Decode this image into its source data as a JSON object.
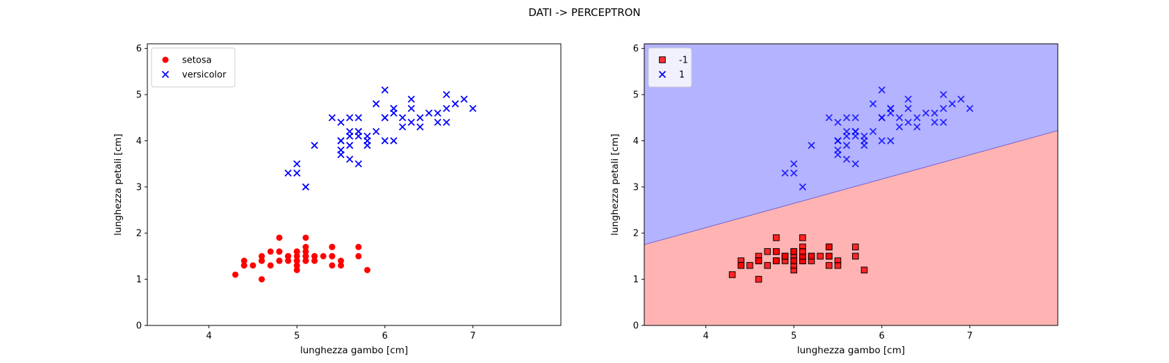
{
  "figure": {
    "suptitle": "DATI -> PERCEPTRON"
  },
  "chart_data": [
    {
      "type": "scatter",
      "title": "",
      "xlabel": "lunghezza gambo [cm]",
      "ylabel": "lunghezza petali [cm]",
      "xlim": [
        3.3,
        8.0
      ],
      "ylim": [
        0,
        6.1
      ],
      "xticks": [
        4,
        5,
        6,
        7
      ],
      "yticks": [
        0,
        1,
        2,
        3,
        4,
        5,
        6
      ],
      "grid": false,
      "legend": "top-left",
      "series": [
        {
          "name": "setosa",
          "marker": "circle",
          "color": "#ff0000",
          "points": [
            [
              5.1,
              1.4
            ],
            [
              4.9,
              1.4
            ],
            [
              4.7,
              1.3
            ],
            [
              4.6,
              1.5
            ],
            [
              5.0,
              1.4
            ],
            [
              5.4,
              1.7
            ],
            [
              4.6,
              1.4
            ],
            [
              5.0,
              1.5
            ],
            [
              4.4,
              1.4
            ],
            [
              4.9,
              1.5
            ],
            [
              5.4,
              1.5
            ],
            [
              4.8,
              1.6
            ],
            [
              4.8,
              1.4
            ],
            [
              4.3,
              1.1
            ],
            [
              5.8,
              1.2
            ],
            [
              5.7,
              1.5
            ],
            [
              5.4,
              1.3
            ],
            [
              5.1,
              1.4
            ],
            [
              5.7,
              1.7
            ],
            [
              5.1,
              1.5
            ],
            [
              5.4,
              1.7
            ],
            [
              5.1,
              1.5
            ],
            [
              4.6,
              1.0
            ],
            [
              5.1,
              1.7
            ],
            [
              4.8,
              1.9
            ],
            [
              5.0,
              1.6
            ],
            [
              5.0,
              1.6
            ],
            [
              5.2,
              1.5
            ],
            [
              5.2,
              1.4
            ],
            [
              4.7,
              1.6
            ],
            [
              4.8,
              1.6
            ],
            [
              5.4,
              1.5
            ],
            [
              5.2,
              1.5
            ],
            [
              5.5,
              1.4
            ],
            [
              4.9,
              1.5
            ],
            [
              5.0,
              1.2
            ],
            [
              5.5,
              1.3
            ],
            [
              4.9,
              1.5
            ],
            [
              4.4,
              1.3
            ],
            [
              5.1,
              1.5
            ],
            [
              5.0,
              1.3
            ],
            [
              4.5,
              1.3
            ],
            [
              4.4,
              1.3
            ],
            [
              5.0,
              1.6
            ],
            [
              5.1,
              1.9
            ],
            [
              4.8,
              1.4
            ],
            [
              5.1,
              1.6
            ],
            [
              4.6,
              1.4
            ],
            [
              5.3,
              1.5
            ],
            [
              5.0,
              1.4
            ]
          ]
        },
        {
          "name": "versicolor",
          "marker": "x",
          "color": "#0000ff",
          "points": [
            [
              7.0,
              4.7
            ],
            [
              6.4,
              4.5
            ],
            [
              6.9,
              4.9
            ],
            [
              5.5,
              4.0
            ],
            [
              6.5,
              4.6
            ],
            [
              5.7,
              4.5
            ],
            [
              6.3,
              4.7
            ],
            [
              4.9,
              3.3
            ],
            [
              6.6,
              4.6
            ],
            [
              5.2,
              3.9
            ],
            [
              5.0,
              3.5
            ],
            [
              5.9,
              4.2
            ],
            [
              6.0,
              4.0
            ],
            [
              6.1,
              4.7
            ],
            [
              5.6,
              3.6
            ],
            [
              6.7,
              4.4
            ],
            [
              5.6,
              4.5
            ],
            [
              5.8,
              4.1
            ],
            [
              6.2,
              4.5
            ],
            [
              5.6,
              3.9
            ],
            [
              5.9,
              4.8
            ],
            [
              6.1,
              4.0
            ],
            [
              6.3,
              4.9
            ],
            [
              6.1,
              4.7
            ],
            [
              6.4,
              4.3
            ],
            [
              6.6,
              4.4
            ],
            [
              6.8,
              4.8
            ],
            [
              6.7,
              5.0
            ],
            [
              6.0,
              4.5
            ],
            [
              5.7,
              3.5
            ],
            [
              5.5,
              3.8
            ],
            [
              5.5,
              3.7
            ],
            [
              5.8,
              3.9
            ],
            [
              6.0,
              5.1
            ],
            [
              5.4,
              4.5
            ],
            [
              6.0,
              4.5
            ],
            [
              6.7,
              4.7
            ],
            [
              6.3,
              4.4
            ],
            [
              5.6,
              4.1
            ],
            [
              5.5,
              4.0
            ],
            [
              5.5,
              4.4
            ],
            [
              6.1,
              4.6
            ],
            [
              5.8,
              4.0
            ],
            [
              5.0,
              3.3
            ],
            [
              5.6,
              4.2
            ],
            [
              5.7,
              4.2
            ],
            [
              5.7,
              4.2
            ],
            [
              6.2,
              4.3
            ],
            [
              5.1,
              3.0
            ],
            [
              5.7,
              4.1
            ]
          ]
        }
      ]
    },
    {
      "type": "scatter",
      "title": "",
      "xlabel": "lunghezza gambo [cm]",
      "ylabel": "lunghezza petali [cm]",
      "xlim": [
        3.3,
        8.0
      ],
      "ylim": [
        0,
        6.1
      ],
      "xticks": [
        4,
        5,
        6,
        7
      ],
      "yticks": [
        0,
        1,
        2,
        3,
        4,
        5,
        6
      ],
      "grid": false,
      "legend": "top-left",
      "decision_boundary": {
        "line": [
          [
            3.3,
            1.75
          ],
          [
            8.0,
            4.22
          ]
        ],
        "region_above": {
          "class": "1",
          "color": "#b3b3ff"
        },
        "region_below": {
          "class": "-1",
          "color": "#ffb3b3"
        }
      },
      "series": [
        {
          "name": "-1",
          "marker": "square",
          "color": "#ff0000",
          "points": [
            [
              5.1,
              1.4
            ],
            [
              4.9,
              1.4
            ],
            [
              4.7,
              1.3
            ],
            [
              4.6,
              1.5
            ],
            [
              5.0,
              1.4
            ],
            [
              5.4,
              1.7
            ],
            [
              4.6,
              1.4
            ],
            [
              5.0,
              1.5
            ],
            [
              4.4,
              1.4
            ],
            [
              4.9,
              1.5
            ],
            [
              5.4,
              1.5
            ],
            [
              4.8,
              1.6
            ],
            [
              4.8,
              1.4
            ],
            [
              4.3,
              1.1
            ],
            [
              5.8,
              1.2
            ],
            [
              5.7,
              1.5
            ],
            [
              5.4,
              1.3
            ],
            [
              5.1,
              1.4
            ],
            [
              5.7,
              1.7
            ],
            [
              5.1,
              1.5
            ],
            [
              5.4,
              1.7
            ],
            [
              5.1,
              1.5
            ],
            [
              4.6,
              1.0
            ],
            [
              5.1,
              1.7
            ],
            [
              4.8,
              1.9
            ],
            [
              5.0,
              1.6
            ],
            [
              5.0,
              1.6
            ],
            [
              5.2,
              1.5
            ],
            [
              5.2,
              1.4
            ],
            [
              4.7,
              1.6
            ],
            [
              4.8,
              1.6
            ],
            [
              5.4,
              1.5
            ],
            [
              5.2,
              1.5
            ],
            [
              5.5,
              1.4
            ],
            [
              4.9,
              1.5
            ],
            [
              5.0,
              1.2
            ],
            [
              5.5,
              1.3
            ],
            [
              4.9,
              1.5
            ],
            [
              4.4,
              1.3
            ],
            [
              5.1,
              1.5
            ],
            [
              5.0,
              1.3
            ],
            [
              4.5,
              1.3
            ],
            [
              4.4,
              1.3
            ],
            [
              5.0,
              1.6
            ],
            [
              5.1,
              1.9
            ],
            [
              4.8,
              1.4
            ],
            [
              5.1,
              1.6
            ],
            [
              4.6,
              1.4
            ],
            [
              5.3,
              1.5
            ],
            [
              5.0,
              1.4
            ]
          ]
        },
        {
          "name": "1",
          "marker": "x",
          "color": "#0000ff",
          "points": [
            [
              7.0,
              4.7
            ],
            [
              6.4,
              4.5
            ],
            [
              6.9,
              4.9
            ],
            [
              5.5,
              4.0
            ],
            [
              6.5,
              4.6
            ],
            [
              5.7,
              4.5
            ],
            [
              6.3,
              4.7
            ],
            [
              4.9,
              3.3
            ],
            [
              6.6,
              4.6
            ],
            [
              5.2,
              3.9
            ],
            [
              5.0,
              3.5
            ],
            [
              5.9,
              4.2
            ],
            [
              6.0,
              4.0
            ],
            [
              6.1,
              4.7
            ],
            [
              5.6,
              3.6
            ],
            [
              6.7,
              4.4
            ],
            [
              5.6,
              4.5
            ],
            [
              5.8,
              4.1
            ],
            [
              6.2,
              4.5
            ],
            [
              5.6,
              3.9
            ],
            [
              5.9,
              4.8
            ],
            [
              6.1,
              4.0
            ],
            [
              6.3,
              4.9
            ],
            [
              6.1,
              4.7
            ],
            [
              6.4,
              4.3
            ],
            [
              6.6,
              4.4
            ],
            [
              6.8,
              4.8
            ],
            [
              6.7,
              5.0
            ],
            [
              6.0,
              4.5
            ],
            [
              5.7,
              3.5
            ],
            [
              5.5,
              3.8
            ],
            [
              5.5,
              3.7
            ],
            [
              5.8,
              3.9
            ],
            [
              6.0,
              5.1
            ],
            [
              5.4,
              4.5
            ],
            [
              6.0,
              4.5
            ],
            [
              6.7,
              4.7
            ],
            [
              6.3,
              4.4
            ],
            [
              5.6,
              4.1
            ],
            [
              5.5,
              4.0
            ],
            [
              5.5,
              4.4
            ],
            [
              6.1,
              4.6
            ],
            [
              5.8,
              4.0
            ],
            [
              5.0,
              3.3
            ],
            [
              5.6,
              4.2
            ],
            [
              5.7,
              4.2
            ],
            [
              5.7,
              4.2
            ],
            [
              6.2,
              4.3
            ],
            [
              5.1,
              3.0
            ],
            [
              5.7,
              4.1
            ]
          ]
        }
      ]
    }
  ]
}
